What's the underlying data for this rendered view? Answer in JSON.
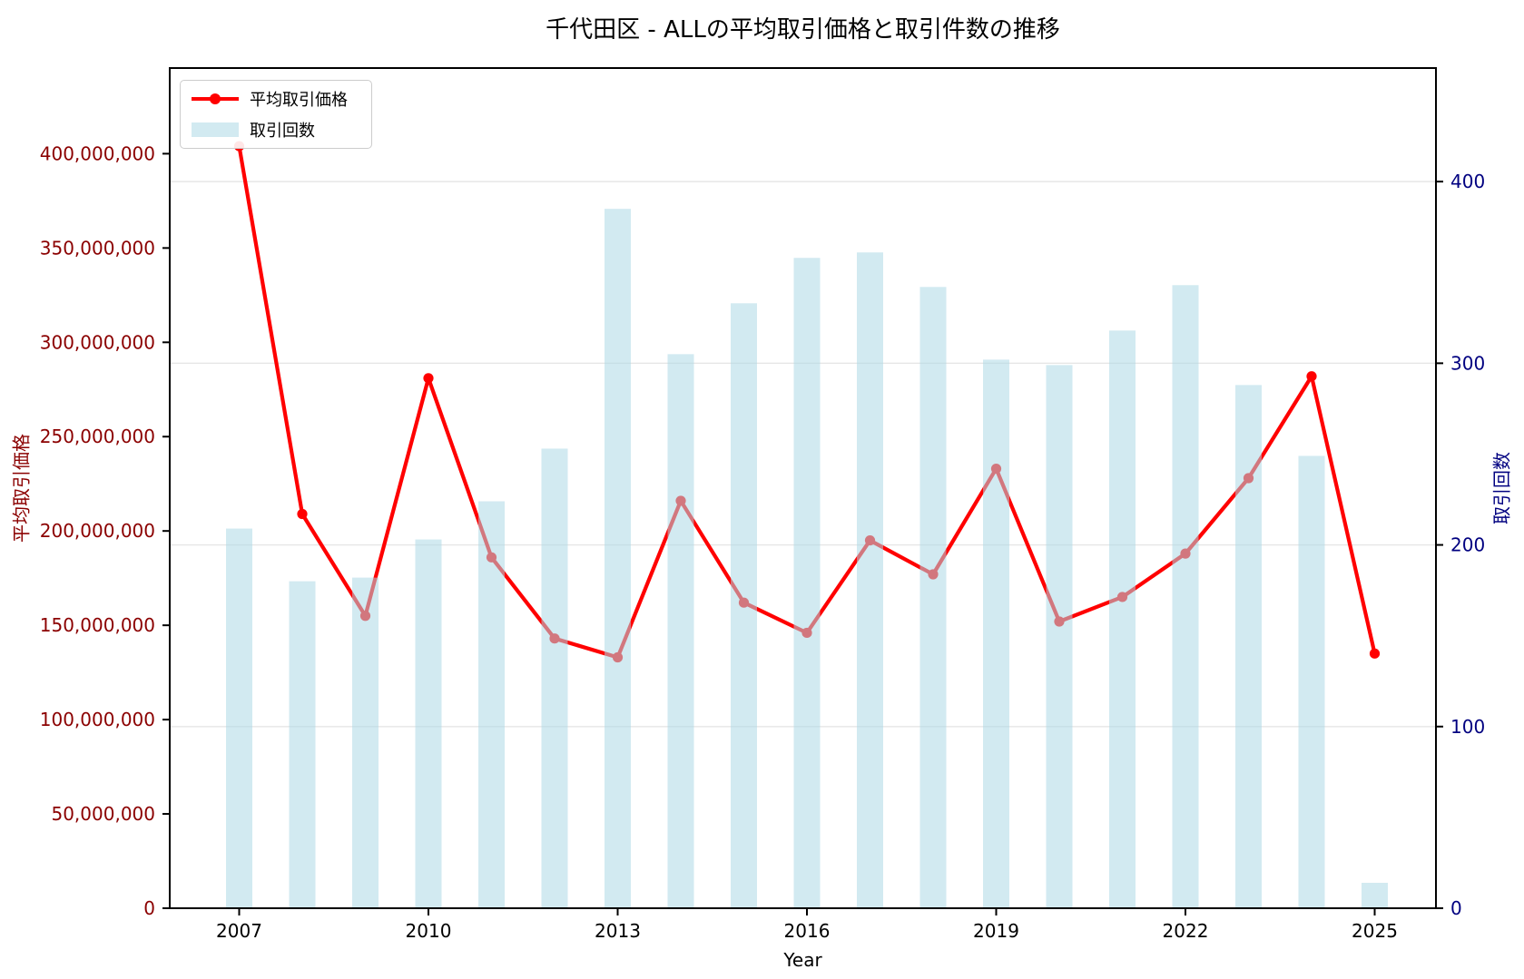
{
  "chart_data": {
    "type": "combo",
    "title": "千代田区 - ALLの平均取引価格と取引件数の推移",
    "xlabel": "Year",
    "ylabel_left": "平均取引価格",
    "ylabel_right": "取引回数",
    "categories": [
      2007,
      2008,
      2009,
      2010,
      2011,
      2012,
      2013,
      2014,
      2015,
      2016,
      2017,
      2018,
      2019,
      2020,
      2021,
      2022,
      2023,
      2024,
      2025
    ],
    "series": [
      {
        "name": "平均取引価格",
        "kind": "line",
        "axis": "left",
        "color": "#ff0000",
        "marker": "circle",
        "values": [
          404000000,
          209000000,
          155000000,
          281000000,
          186000000,
          143000000,
          133000000,
          216000000,
          162000000,
          146000000,
          195000000,
          177000000,
          233000000,
          152000000,
          165000000,
          188000000,
          228000000,
          282000000,
          135000000
        ]
      },
      {
        "name": "取引回数",
        "kind": "bar",
        "axis": "right",
        "color": "#add8e6",
        "opacity": 0.55,
        "values": [
          209,
          180,
          182,
          203,
          224,
          253,
          385,
          305,
          333,
          358,
          361,
          342,
          302,
          299,
          318,
          343,
          288,
          249,
          14
        ]
      }
    ],
    "axes": {
      "left": {
        "tick_values": [
          0,
          50000000,
          100000000,
          150000000,
          200000000,
          250000000,
          300000000,
          350000000,
          400000000
        ],
        "tick_labels": [
          "0",
          "50,000,000",
          "100,000,000",
          "150,000,000",
          "200,000,000",
          "250,000,000",
          "300,000,000",
          "350,000,000",
          "400,000,000"
        ],
        "color": "#8b0000",
        "lim": [
          0,
          445400000
        ]
      },
      "right": {
        "tick_values": [
          0,
          100,
          200,
          300,
          400
        ],
        "tick_labels": [
          "0",
          "100",
          "200",
          "300",
          "400"
        ],
        "color": "#000080",
        "lim": [
          0,
          462.5
        ]
      },
      "x": {
        "tick_values": [
          2007,
          2010,
          2013,
          2016,
          2019,
          2022,
          2025
        ],
        "tick_labels": [
          "2007",
          "2010",
          "2013",
          "2016",
          "2019",
          "2022",
          "2025"
        ],
        "color": "#000000"
      }
    },
    "grid": {
      "show": true,
      "on_axis": "right",
      "color": "#e6e6e6"
    },
    "legend": {
      "position": "upper left",
      "entries": [
        {
          "label": "平均取引価格",
          "swatch": "red-line-marker"
        },
        {
          "label": "取引回数",
          "swatch": "lightblue-patch"
        }
      ]
    }
  }
}
